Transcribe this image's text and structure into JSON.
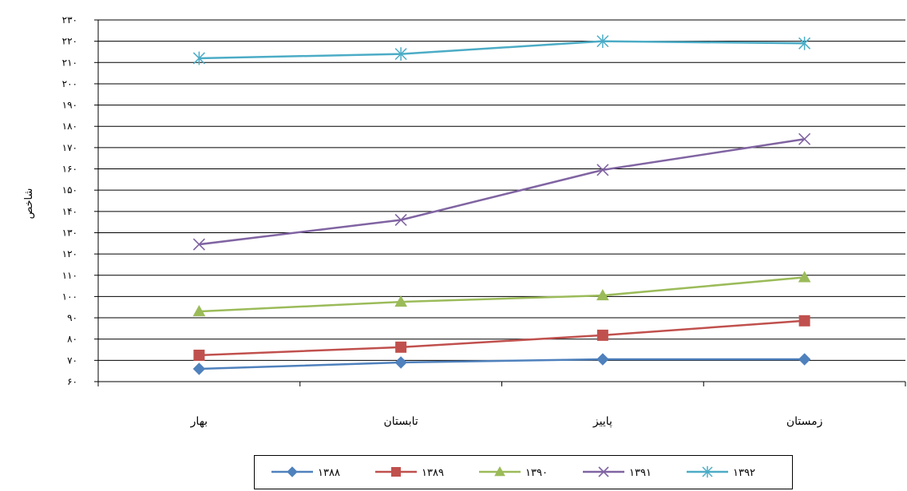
{
  "chart_data": {
    "type": "line",
    "categories": [
      "بهار",
      "تابستان",
      "پاییز",
      "زمستان"
    ],
    "series": [
      {
        "name": "۱۳۸۸",
        "values": [
          66,
          69,
          70.5,
          70.5
        ],
        "color": "#4F81BD",
        "marker": "diamond"
      },
      {
        "name": "۱۳۸۹",
        "values": [
          72.4,
          76.2,
          81.8,
          88.6
        ],
        "color": "#C0504D",
        "marker": "square"
      },
      {
        "name": "۱۳۹۰",
        "values": [
          93,
          97.5,
          100.5,
          109
        ],
        "color": "#9BBB59",
        "marker": "triangle"
      },
      {
        "name": "۱۳۹۱",
        "values": [
          124.5,
          136,
          159.5,
          174
        ],
        "color": "#8064A2",
        "marker": "x"
      },
      {
        "name": "۱۳۹۲",
        "values": [
          212,
          214,
          220,
          219
        ],
        "color": "#4BACC6",
        "marker": "star"
      }
    ],
    "ylabel": "شاخص",
    "ylim": [
      60,
      230
    ],
    "yticks": [
      60,
      70,
      80,
      90,
      100,
      110,
      120,
      130,
      140,
      150,
      160,
      170,
      180,
      190,
      200,
      210,
      220,
      230
    ],
    "ytick_labels": [
      "۶۰",
      "۷۰",
      "۸۰",
      "۹۰",
      "۱۰۰",
      "۱۱۰",
      "۱۲۰",
      "۱۳۰",
      "۱۴۰",
      "۱۵۰",
      "۱۶۰",
      "۱۷۰",
      "۱۸۰",
      "۱۹۰",
      "۲۰۰",
      "۲۱۰",
      "۲۲۰",
      "۲۳۰"
    ],
    "grid": true,
    "legend": "bottom"
  }
}
